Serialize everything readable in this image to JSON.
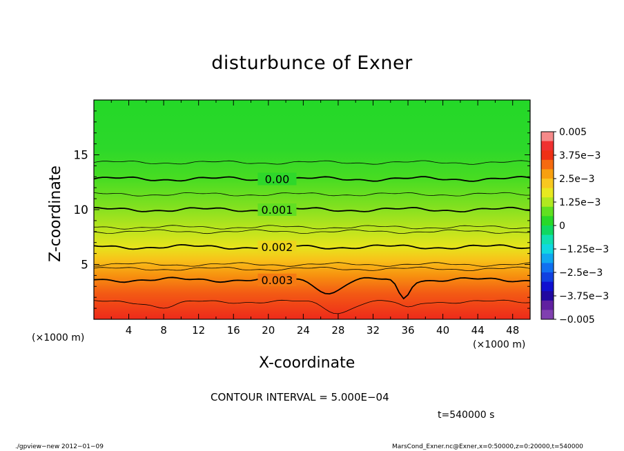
{
  "chart_data": {
    "type": "heatmap",
    "title": "disturbunce of Exner",
    "xlabel": "X-coordinate",
    "ylabel": "Z-coordinate",
    "x_unit_label": "(×1000 m)",
    "x_range": [
      0,
      50
    ],
    "y_range": [
      0,
      20
    ],
    "x_ticks": [
      "4",
      "8",
      "12",
      "16",
      "20",
      "24",
      "28",
      "32",
      "36",
      "40",
      "44",
      "48"
    ],
    "y_ticks": [
      "5",
      "10",
      "15"
    ],
    "colorbar": {
      "ticks": [
        "0.005",
        "3.75e−3",
        "2.5e−3",
        "1.25e−3",
        "0",
        "−1.25e−3",
        "−2.5e−3",
        "−3.75e−3",
        "−0.005"
      ],
      "range": [
        -0.005,
        0.005
      ],
      "colors": [
        "#f68a8a",
        "#f03030",
        "#ee3015",
        "#f56a10",
        "#f8a010",
        "#f8c820",
        "#e8e820",
        "#b0e820",
        "#60e020",
        "#28d828",
        "#10d860",
        "#10e0b0",
        "#10d8e0",
        "#10a8f0",
        "#1070f0",
        "#1040e0",
        "#1010d0",
        "#2008a0",
        "#6020a0",
        "#8040b0"
      ]
    },
    "contour_labels": [
      "0.00",
      "0.001",
      "0.002",
      "0.003"
    ],
    "contour_levels_z": [
      {
        "value": 0.0,
        "z": 12.8
      },
      {
        "value": 0.001,
        "z": 10.0
      },
      {
        "value": 0.002,
        "z": 6.6
      },
      {
        "value": 0.003,
        "z": 3.6
      }
    ],
    "grid": false
  },
  "annotations": {
    "contour_interval": "CONTOUR INTERVAL = 5.000E−04",
    "time": "t=540000 s",
    "footer_left": "./gpview−new   2012−01−09",
    "footer_right": "MarsCond_Exner.nc@Exner,x=0:50000,z=0:20000,t=540000"
  }
}
